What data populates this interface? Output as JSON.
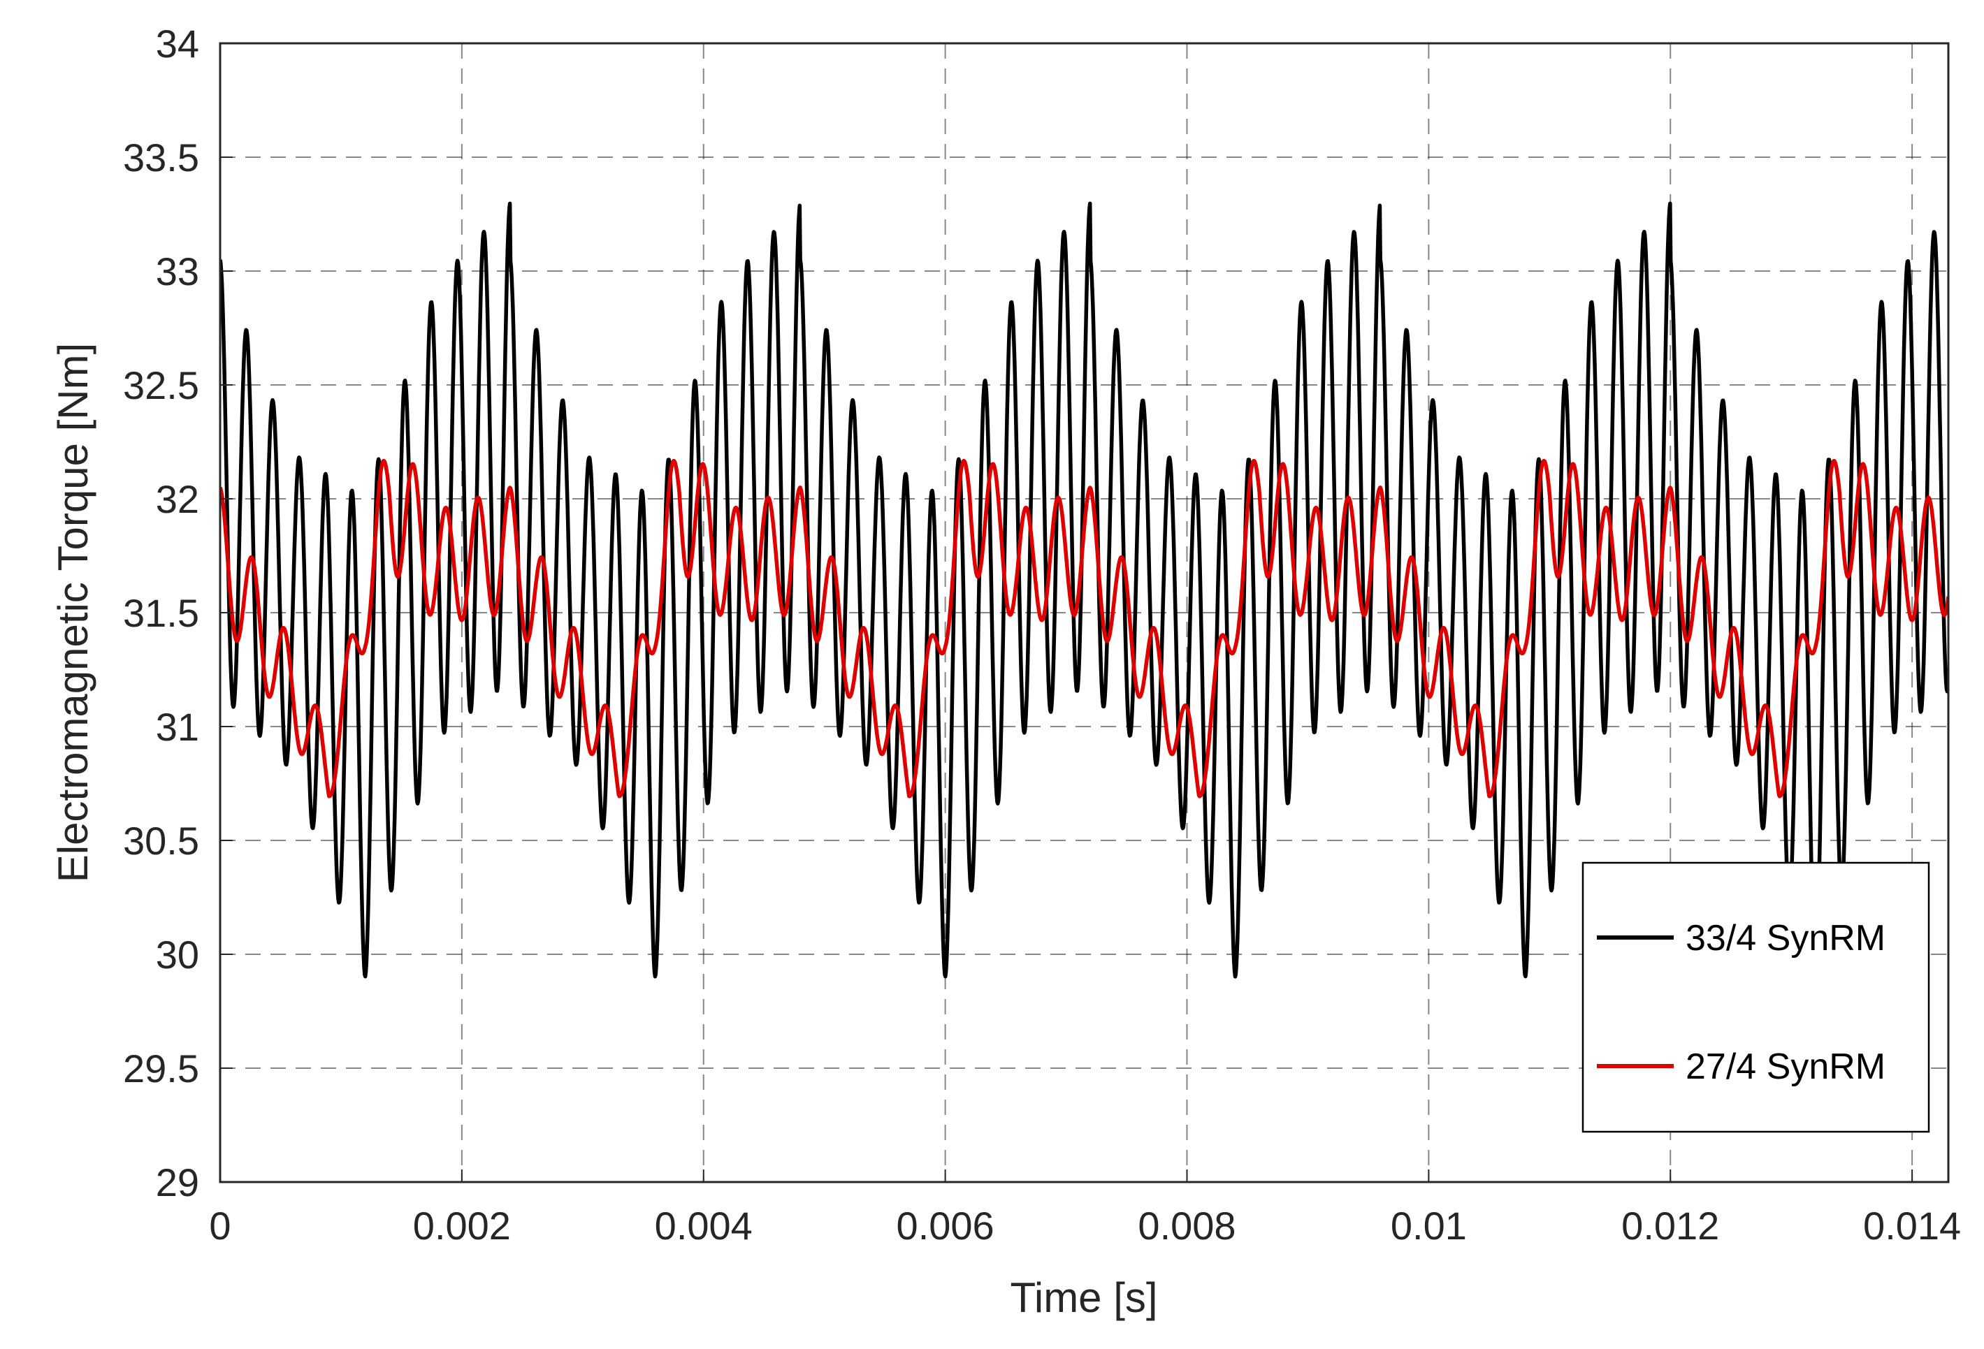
{
  "chart_data": {
    "type": "line",
    "title": "",
    "xlabel": "Time [s]",
    "ylabel": "Electromagnetic Torque [Nm]",
    "xlim": [
      0,
      0.0143
    ],
    "ylim": [
      29,
      34
    ],
    "xticks": [
      0,
      0.002,
      0.004,
      0.006,
      0.008,
      0.01,
      0.012,
      0.014
    ],
    "xtick_labels": [
      "0",
      "0.002",
      "0.004",
      "0.006",
      "0.008",
      "0.01",
      "0.012",
      "0.014"
    ],
    "yticks": [
      29,
      29.5,
      30,
      30.5,
      31,
      31.5,
      32,
      32.5,
      33,
      33.5,
      34
    ],
    "ytick_labels": [
      "29",
      "29.5",
      "30",
      "30.5",
      "31",
      "31.5",
      "32",
      "32.5",
      "33",
      "33.5",
      "34"
    ],
    "grid": true,
    "legend_position": "bottom-right",
    "period": 0.0024,
    "series": [
      {
        "name": "33/4 SynRM",
        "color": "#000000",
        "envelope": {
          "t": [
            0,
            0.0006,
            0.0012,
            0.0018,
            0.0024
          ],
          "upper": [
            33.05,
            32.2,
            32.0,
            32.95,
            33.3
          ],
          "lower": [
            31.15,
            30.8,
            29.9,
            30.95,
            31.2
          ]
        },
        "ripple_per_period": 11
      },
      {
        "name": "27/4 SynRM",
        "color": "#e00000",
        "envelope": {
          "t": [
            0,
            0.0006,
            0.0009,
            0.0012,
            0.0014,
            0.0018,
            0.0024
          ],
          "upper": [
            32.05,
            31.35,
            30.95,
            31.7,
            32.35,
            31.95,
            32.05
          ],
          "lower": [
            31.5,
            30.95,
            30.65,
            31.35,
            31.7,
            31.45,
            31.5
          ]
        },
        "ripple_per_period": 9
      }
    ]
  }
}
